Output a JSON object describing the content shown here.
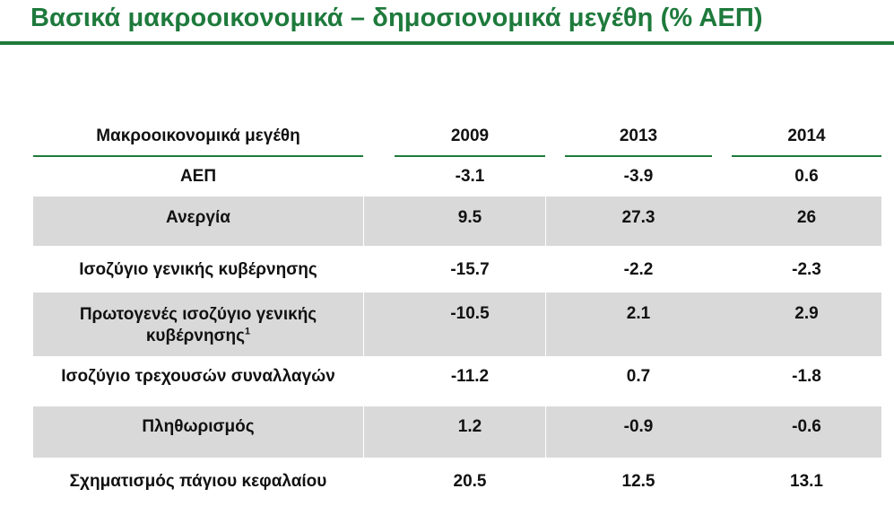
{
  "title": "Βασικά μακροοικονομικά – δημοσιονομικά μεγέθη (% ΑΕΠ)",
  "colors": {
    "accent": "#1e7a3c",
    "shade": "#d9d9d9"
  },
  "table": {
    "headers": [
      "Μακροοικονομικά μεγέθη",
      "2009",
      "2013",
      "2014"
    ],
    "rows": [
      {
        "label": "ΑΕΠ",
        "v2009": "-3.1",
        "v2013": "-3.9",
        "v2014": "0.6"
      },
      {
        "label": "Ανεργία",
        "v2009": "9.5",
        "v2013": "27.3",
        "v2014": "26"
      },
      {
        "label": "Ισοζύγιο γενικής κυβέρνησης",
        "v2009": "-15.7",
        "v2013": "-2.2",
        "v2014": "-2.3"
      },
      {
        "label": "Πρωτογενές ισοζύγιο γενικής κυβέρνησης",
        "footnote": "1",
        "v2009": "-10.5",
        "v2013": "2.1",
        "v2014": "2.9"
      },
      {
        "label": "Ισοζύγιο τρεχουσών συναλλαγών",
        "v2009": "-11.2",
        "v2013": "0.7",
        "v2014": "-1.8"
      },
      {
        "label": "Πληθωρισμός",
        "v2009": "1.2",
        "v2013": "-0.9",
        "v2014": "-0.6"
      },
      {
        "label": "Σχηματισμός πάγιου κεφαλαίου",
        "v2009": "20.5",
        "v2013": "12.5",
        "v2014": "13.1"
      }
    ]
  }
}
